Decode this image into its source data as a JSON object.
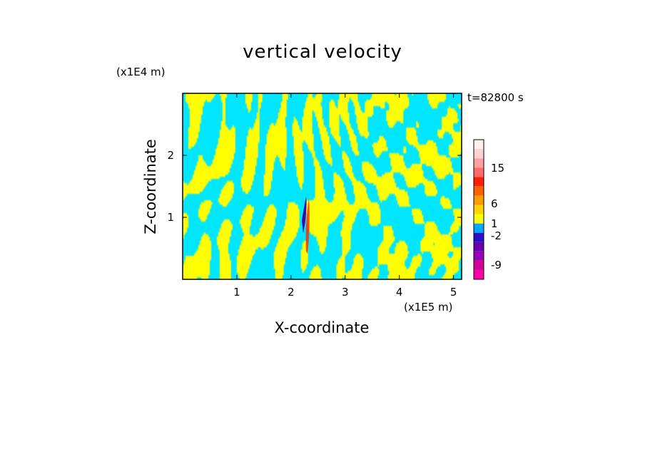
{
  "chart_data": {
    "type": "heatmap",
    "title": "vertical velocity",
    "xlabel": "X-coordinate",
    "ylabel": "Z-coordinate",
    "x_unit": "(x1E5 m)",
    "z_unit": "(x1E4 m)",
    "time_label": "t=82800 s",
    "xlim": [
      0,
      5.15
    ],
    "ylim": [
      0,
      3.0
    ],
    "xticks": [
      "1",
      "2",
      "3",
      "4",
      "5"
    ],
    "xtick_values": [
      1,
      2,
      3,
      4,
      5
    ],
    "yticks": [
      "1",
      "2"
    ],
    "ytick_values": [
      1,
      2
    ],
    "field_colors": {
      "negative": "#00e6ff",
      "positive": "#ffff00",
      "disturbance_neg": "#3a0aa8",
      "disturbance_pos": "#ff2a00"
    },
    "colorbar": {
      "tick_labels": [
        "15",
        "6",
        "1",
        "-2",
        "-9"
      ],
      "colors": [
        "#ff00aa",
        "#d10096",
        "#9a00b8",
        "#6a00b0",
        "#2a10c8",
        "#00a8ff",
        "#ffff00",
        "#ffd400",
        "#ff9a00",
        "#ff6000",
        "#ff1e00",
        "#ff6a6a",
        "#ffa0a0",
        "#ffd0d0",
        "#fff0f0"
      ]
    }
  }
}
